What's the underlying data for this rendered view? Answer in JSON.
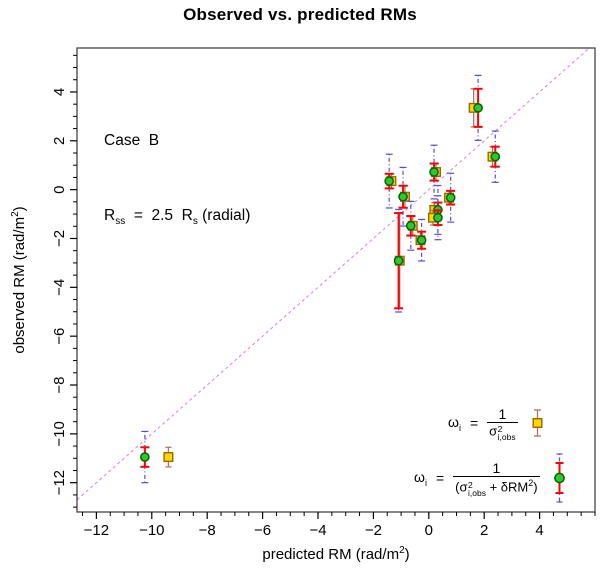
{
  "colors": {
    "square_fill": "#ffd700",
    "square_border": "#996600",
    "square_errorbar": "#aa7766",
    "circle_fill": "#2fc62f",
    "circle_border": "#006600",
    "errorbar_obs": "#ff0000",
    "errorbar_total": "#5050d8",
    "identity_line": "#dd88dd",
    "axis": "#000000",
    "box": "#444444"
  },
  "annotation": {
    "line1": "Case  B",
    "line2": {
      "r1": "R",
      "r1_sub": "ss",
      "mid": "  =  2.5  ",
      "r2": "R",
      "r2_sub": "s",
      "tail": " (radial)"
    }
  },
  "axes": {
    "x": {
      "label_pre": "predicted RM (rad/m",
      "label_sup": "2",
      "label_post": ")"
    },
    "y": {
      "label_pre": "observed RM (rad/m",
      "label_sup": "2",
      "label_post": ")"
    }
  },
  "legend": {
    "rows": [
      {
        "omega": "ω",
        "omega_sub": "i",
        "equals": "=",
        "numerator": "1",
        "den": {
          "sigma": "σ",
          "sup": "2",
          "sub": "i,obs"
        }
      },
      {
        "omega": "ω",
        "omega_sub": "i",
        "equals": "=",
        "numerator": "1",
        "den": {
          "open": "(",
          "sigma": "σ",
          "sup": "2",
          "sub": "i,obs",
          "plus": " + δRM",
          "plus_sup": "2",
          "close": ")"
        }
      }
    ]
  },
  "chart_data": {
    "type": "scatter",
    "title": "Observed vs. predicted RMs",
    "xlabel": "predicted RM (rad/m2)",
    "ylabel": "observed RM (rad/m2)",
    "xlim": [
      -12.7,
      6.0
    ],
    "ylim": [
      -13.2,
      5.8
    ],
    "x_ticks": [
      -12,
      -10,
      -8,
      -6,
      -4,
      -2,
      0,
      2,
      4
    ],
    "y_ticks": [
      -12,
      -10,
      -8,
      -6,
      -4,
      -2,
      0,
      2,
      4
    ],
    "minor_tick_step": 0.5,
    "identity_line": true,
    "grid": false,
    "legend_position": "bottom-right",
    "series_names": [
      "weights 1/sigma2_i,obs (yellow squares)",
      "weights 1/(sigma2_i,obs + deltaRM2) (green circles)"
    ],
    "observations": [
      {
        "pred_sq": -9.4,
        "pred_ci": -10.25,
        "obs": -10.95,
        "err_obs": 0.4,
        "err_tot": 1.05
      },
      {
        "pred_sq": -1.35,
        "pred_ci": -1.43,
        "obs": 0.35,
        "err_obs": 0.3,
        "err_tot": 1.1
      },
      {
        "pred_sq": -0.86,
        "pred_ci": -0.93,
        "obs": -0.29,
        "err_obs": 0.45,
        "err_tot": 1.2
      },
      {
        "pred_sq": 0.26,
        "pred_ci": 0.19,
        "obs": 0.72,
        "err_obs": 0.35,
        "err_tot": 1.1
      },
      {
        "pred_sq": -0.58,
        "pred_ci": -0.65,
        "obs": -1.48,
        "err_obs": 0.4,
        "err_tot": 1.0
      },
      {
        "pred_sq": 0.2,
        "pred_ci": 0.33,
        "obs": -0.83,
        "err_obs": 0.3,
        "err_tot": 1.0
      },
      {
        "pred_sq": 0.15,
        "pred_ci": 0.33,
        "obs": -1.15,
        "err_obs": 0.3,
        "err_tot": 0.9
      },
      {
        "pred_sq": 0.73,
        "pred_ci": 0.79,
        "obs": -0.33,
        "err_obs": 0.28,
        "err_tot": 1.0
      },
      {
        "pred_sq": -0.3,
        "pred_ci": -0.26,
        "obs": -2.07,
        "err_obs": 0.35,
        "err_tot": 0.85
      },
      {
        "pred_sq": -1.05,
        "pred_ci": -1.09,
        "obs": -2.91,
        "err_obs": 1.95,
        "err_tot": 2.1
      },
      {
        "pred_sq": 1.62,
        "pred_ci": 1.78,
        "obs": 3.35,
        "err_obs": 0.78,
        "err_tot": 1.33
      },
      {
        "pred_sq": 2.3,
        "pred_ci": 2.4,
        "obs": 1.35,
        "err_obs": 0.41,
        "err_tot": 1.05
      }
    ]
  }
}
